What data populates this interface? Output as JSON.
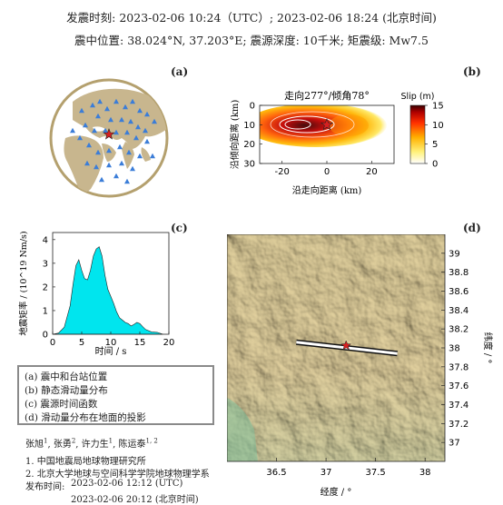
{
  "header": {
    "line1": "发震时刻: 2023-02-06 10:24（UTC）;   2023-02-06  18:24 (北京时间)",
    "line2": "震中位置: 38.024°N,  37.203°E;   震源深度: 10千米; 矩震级: Mw7.5"
  },
  "panels": {
    "a": "(a)",
    "b": "(b)",
    "c": "(c)",
    "d": "(d)"
  },
  "legend": {
    "items": [
      "(a) 震中和台站位置",
      "(b) 静态滑动量分布",
      "(c) 震源时间函数",
      "(d) 滑动量分布在地面的投影"
    ]
  },
  "authors": {
    "names": [
      "张旭",
      "张勇",
      "许力生",
      "陈运泰"
    ],
    "sups": [
      "1",
      "2",
      "1",
      "1, 2"
    ],
    "aff1": "1. 中国地震局地球物理研究所",
    "aff2": "2. 北京大学地球与空间科学学院地球物理学系",
    "release_label": "发布时间:",
    "release_utc": "2023-02-06  12:12 (UTC)",
    "release_bj": "2023-02-06  20:12 (北京时间)"
  },
  "colors": {
    "station": "#3b7dd8",
    "epicenter": "#d62020",
    "stf_fill": "#00e5ee",
    "globe_land": "#c8b68e"
  },
  "chart_data": [
    {
      "type": "map",
      "panel": "a",
      "markers": {
        "stations": "blue triangles",
        "epicenter": "red star"
      }
    },
    {
      "type": "heatmap",
      "panel": "b",
      "title": "走向277°/倾角78°",
      "xlabel": "沿走向距离 (km)",
      "ylabel": "沿倾向距离 (km)",
      "xlim": [
        -30,
        30
      ],
      "ylim": [
        30,
        0
      ],
      "xticks": [
        -20,
        0,
        20
      ],
      "yticks": [
        0,
        10,
        20,
        30
      ],
      "colorbar": {
        "label": "Slip (m)",
        "min": 0,
        "max": 15,
        "ticks": [
          0,
          5,
          10,
          15
        ]
      },
      "hypocenter": {
        "x": 0,
        "y": 10
      },
      "peak_slip": {
        "x": -8,
        "y": 10,
        "value": 15
      }
    },
    {
      "type": "area",
      "panel": "c",
      "xlabel": "时间 / s",
      "ylabel": "地震矩率 / (10^19 Nm/s)",
      "xlim": [
        0,
        20
      ],
      "ylim": [
        0,
        4.3
      ],
      "xticks": [
        0,
        5,
        10,
        15,
        20
      ],
      "yticks": [
        0,
        1,
        2,
        3,
        4
      ],
      "x": [
        0,
        1,
        2,
        3,
        3.5,
        4,
        4.5,
        5,
        5.5,
        6,
        6.5,
        7,
        7.5,
        8,
        8.5,
        9,
        9.5,
        10,
        10.5,
        11,
        11.5,
        12,
        12.5,
        13,
        13.5,
        14,
        14.5,
        15,
        15.5,
        16,
        17,
        18,
        19
      ],
      "values": [
        0,
        0.05,
        0.3,
        1.2,
        2.1,
        2.9,
        3.15,
        2.7,
        2.35,
        2.3,
        2.7,
        3.3,
        3.6,
        3.7,
        3.3,
        2.5,
        1.9,
        1.6,
        1.3,
        0.95,
        0.7,
        0.6,
        0.5,
        0.45,
        0.35,
        0.42,
        0.5,
        0.45,
        0.32,
        0.2,
        0.1,
        0.08,
        0
      ]
    },
    {
      "type": "map",
      "panel": "d",
      "xlabel": "经度 / °",
      "ylabel": "纬度 / °",
      "xlim": [
        36.0,
        38.2
      ],
      "ylim": [
        36.8,
        39.2
      ],
      "xticks": [
        36.5,
        37,
        37.5,
        38
      ],
      "yticks": [
        37,
        37.2,
        37.4,
        37.6,
        37.8,
        38,
        38.2,
        38.4,
        38.6,
        38.8,
        39
      ],
      "fault": {
        "lon": [
          36.7,
          37.72
        ],
        "lat": [
          38.06,
          37.94
        ]
      },
      "epicenter": {
        "lon": 37.203,
        "lat": 38.024
      }
    }
  ]
}
